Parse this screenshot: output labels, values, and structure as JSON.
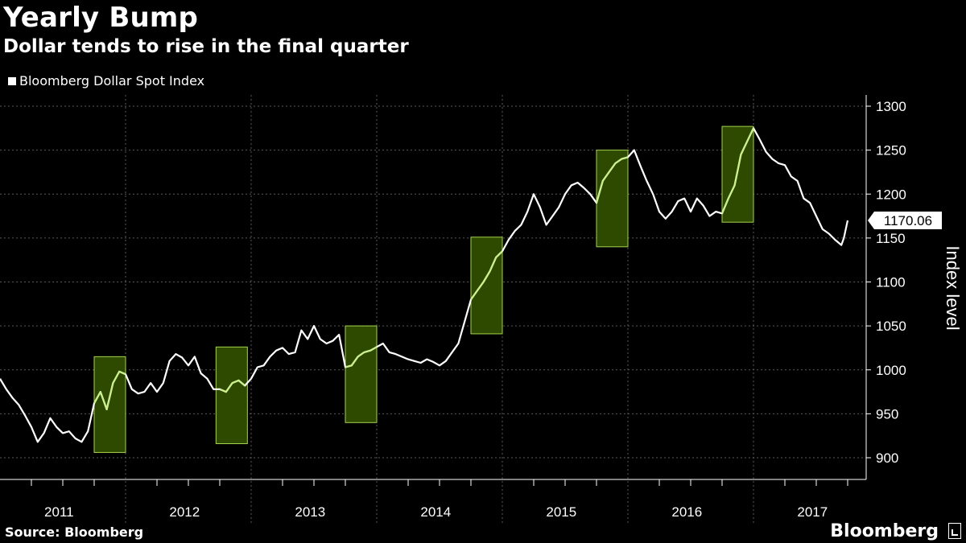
{
  "header": {
    "title": "Yearly Bump",
    "subtitle": "Dollar tends to rise in the final quarter"
  },
  "footer": {
    "source": "Source: Bloomberg",
    "brand": "Bloomberg"
  },
  "colors": {
    "background": "#000000",
    "line": "#ffffff",
    "highlight_fill": "#2e4a00",
    "highlight_stroke": "#a5d34a",
    "highlight_line": "#c9f08a",
    "grid": "#5a5a5a"
  },
  "chart_data": {
    "type": "line",
    "title": "Yearly Bump",
    "subtitle": "Dollar tends to rise in the final quarter",
    "xlabel": "",
    "ylabel": "Index level",
    "legend": [
      "Bloomberg Dollar Spot Index"
    ],
    "legend_position": "top-left",
    "ylim": [
      880,
      1310
    ],
    "yticks": [
      900,
      950,
      1000,
      1050,
      1100,
      1150,
      1200,
      1250,
      1300
    ],
    "xlim": [
      2011.0,
      2017.9
    ],
    "year_labels": [
      "2011",
      "2012",
      "2013",
      "2014",
      "2015",
      "2016",
      "2017"
    ],
    "last_value_label": "1170.06",
    "grid": true,
    "highlights": [
      {
        "label": "Q4 2011",
        "x0": 2011.75,
        "x1": 2012.0,
        "y0": 906,
        "y1": 1015
      },
      {
        "label": "Q4 2012",
        "x0": 2012.72,
        "x1": 2012.97,
        "y0": 916,
        "y1": 1026
      },
      {
        "label": "Q4 2013",
        "x0": 2013.75,
        "x1": 2014.0,
        "y0": 940,
        "y1": 1050
      },
      {
        "label": "Q4 2014",
        "x0": 2014.75,
        "x1": 2015.0,
        "y0": 1041,
        "y1": 1151
      },
      {
        "label": "Q4 2015",
        "x0": 2015.75,
        "x1": 2016.0,
        "y0": 1140,
        "y1": 1250
      },
      {
        "label": "Q4 2016",
        "x0": 2016.75,
        "x1": 2017.0,
        "y0": 1168,
        "y1": 1277
      }
    ],
    "series": [
      {
        "name": "Bloomberg Dollar Spot Index",
        "x": [
          2011.0,
          2011.05,
          2011.1,
          2011.15,
          2011.2,
          2011.25,
          2011.3,
          2011.35,
          2011.4,
          2011.45,
          2011.5,
          2011.55,
          2011.6,
          2011.65,
          2011.7,
          2011.75,
          2011.8,
          2011.85,
          2011.9,
          2011.95,
          2012.0,
          2012.05,
          2012.1,
          2012.15,
          2012.2,
          2012.25,
          2012.3,
          2012.35,
          2012.4,
          2012.45,
          2012.5,
          2012.55,
          2012.6,
          2012.65,
          2012.7,
          2012.75,
          2012.8,
          2012.85,
          2012.9,
          2012.95,
          2013.0,
          2013.05,
          2013.1,
          2013.15,
          2013.2,
          2013.25,
          2013.3,
          2013.35,
          2013.4,
          2013.45,
          2013.5,
          2013.55,
          2013.6,
          2013.65,
          2013.7,
          2013.75,
          2013.8,
          2013.85,
          2013.9,
          2013.95,
          2014.0,
          2014.05,
          2014.1,
          2014.15,
          2014.2,
          2014.25,
          2014.3,
          2014.35,
          2014.4,
          2014.45,
          2014.5,
          2014.55,
          2014.6,
          2014.65,
          2014.7,
          2014.75,
          2014.8,
          2014.85,
          2014.9,
          2014.95,
          2015.0,
          2015.05,
          2015.1,
          2015.15,
          2015.2,
          2015.25,
          2015.3,
          2015.35,
          2015.4,
          2015.45,
          2015.5,
          2015.55,
          2015.6,
          2015.65,
          2015.7,
          2015.75,
          2015.8,
          2015.85,
          2015.9,
          2015.95,
          2016.0,
          2016.05,
          2016.1,
          2016.15,
          2016.2,
          2016.25,
          2016.3,
          2016.35,
          2016.4,
          2016.45,
          2016.5,
          2016.55,
          2016.6,
          2016.65,
          2016.7,
          2016.75,
          2016.8,
          2016.85,
          2016.9,
          2016.95,
          2017.0,
          2017.05,
          2017.1,
          2017.15,
          2017.2,
          2017.25,
          2017.3,
          2017.35,
          2017.4,
          2017.45,
          2017.5,
          2017.55,
          2017.6,
          2017.65,
          2017.7,
          2017.72,
          2017.75
        ],
        "values": [
          990,
          978,
          968,
          960,
          948,
          935,
          918,
          928,
          945,
          935,
          928,
          930,
          922,
          918,
          930,
          962,
          975,
          955,
          985,
          998,
          995,
          978,
          973,
          975,
          985,
          975,
          985,
          1010,
          1018,
          1014,
          1005,
          1015,
          996,
          990,
          978,
          978,
          975,
          985,
          988,
          982,
          990,
          1003,
          1005,
          1015,
          1022,
          1025,
          1018,
          1020,
          1045,
          1035,
          1050,
          1035,
          1030,
          1033,
          1040,
          1003,
          1005,
          1015,
          1020,
          1022,
          1026,
          1030,
          1020,
          1018,
          1015,
          1012,
          1010,
          1008,
          1012,
          1009,
          1005,
          1010,
          1020,
          1030,
          1055,
          1080,
          1090,
          1100,
          1112,
          1128,
          1135,
          1148,
          1158,
          1165,
          1180,
          1200,
          1185,
          1165,
          1175,
          1185,
          1200,
          1210,
          1213,
          1207,
          1200,
          1190,
          1215,
          1225,
          1235,
          1240,
          1242,
          1250,
          1232,
          1215,
          1200,
          1180,
          1172,
          1180,
          1192,
          1195,
          1180,
          1195,
          1187,
          1175,
          1180,
          1178,
          1195,
          1210,
          1245,
          1260,
          1275,
          1262,
          1248,
          1240,
          1235,
          1233,
          1220,
          1215,
          1195,
          1190,
          1175,
          1160,
          1155,
          1148,
          1142,
          1150,
          1170
        ]
      }
    ]
  }
}
